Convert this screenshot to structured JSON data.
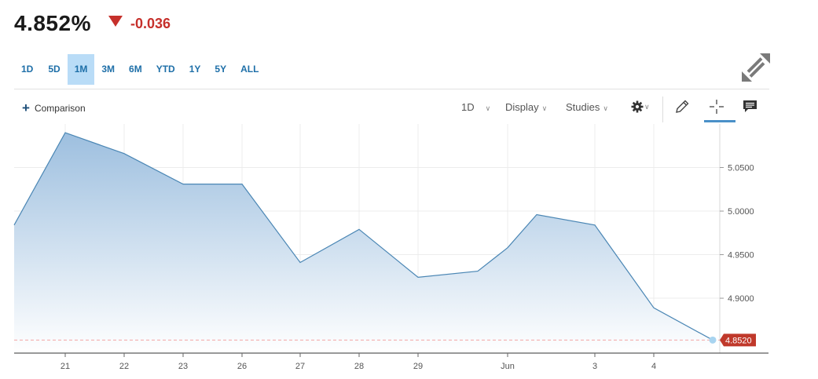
{
  "quote": {
    "price": "4.852%",
    "change": "-0.036",
    "direction": "down",
    "down_color": "#c6302b"
  },
  "ranges": [
    {
      "label": "1D",
      "active": false
    },
    {
      "label": "5D",
      "active": false
    },
    {
      "label": "1M",
      "active": true
    },
    {
      "label": "3M",
      "active": false
    },
    {
      "label": "6M",
      "active": false
    },
    {
      "label": "YTD",
      "active": false
    },
    {
      "label": "1Y",
      "active": false
    },
    {
      "label": "5Y",
      "active": false
    },
    {
      "label": "ALL",
      "active": false
    }
  ],
  "toolbar": {
    "comparison_label": "Comparison",
    "interval_label": "1D",
    "display_label": "Display",
    "studies_label": "Studies",
    "icons": [
      "gear-icon",
      "pencil-icon",
      "crosshair-icon",
      "comment-icon",
      "expand-icon"
    ]
  },
  "chart_data": {
    "type": "area",
    "x": [
      "May 20",
      "21",
      "22",
      "23",
      "26",
      "27",
      "28",
      "29",
      "May 31",
      "Jun",
      "Jun 3 (prev)",
      "3",
      "4",
      "Jun 5"
    ],
    "x_tick_labels": [
      "21",
      "22",
      "23",
      "26",
      "27",
      "28",
      "29",
      "Jun",
      "3",
      "4"
    ],
    "values": [
      4.984,
      5.09,
      5.066,
      5.031,
      5.031,
      4.941,
      4.979,
      4.924,
      4.931,
      4.958,
      4.996,
      4.984,
      4.889,
      4.852
    ],
    "y_tick_labels": [
      "5.0500",
      "5.0000",
      "4.9500",
      "4.9000"
    ],
    "y_ticks": [
      5.05,
      5.0,
      4.95,
      4.9
    ],
    "ylim": [
      4.837,
      5.1
    ],
    "last_value_label": "4.8520",
    "last_value": 4.852,
    "line_color": "#4a86b4",
    "fill_top_color": "#9dbfdf",
    "tag_color": "#c0392b",
    "grid": true
  }
}
